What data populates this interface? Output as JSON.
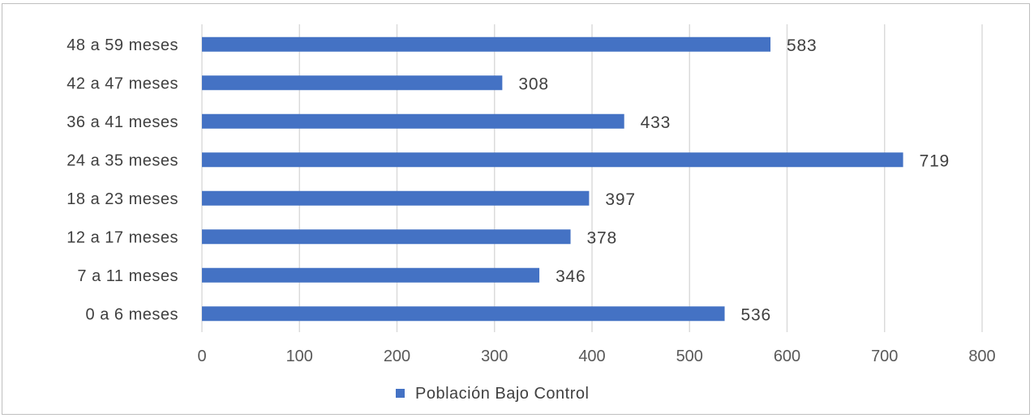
{
  "chart_data": {
    "type": "bar",
    "orientation": "horizontal",
    "categories": [
      "0 a 6 meses",
      "7 a 11 meses",
      "12 a 17 meses",
      "18 a 23 meses",
      "24 a 35 meses",
      "36 a 41 meses",
      "42 a 47 meses",
      "48 a 59 meses"
    ],
    "series": [
      {
        "name": "Población Bajo Control",
        "values": [
          536,
          346,
          378,
          397,
          719,
          433,
          308,
          583
        ],
        "color": "#4472c4"
      }
    ],
    "xlim": [
      0,
      800
    ],
    "xticks": [
      0,
      100,
      200,
      300,
      400,
      500,
      600,
      700,
      800
    ],
    "grid": true,
    "legend_position": "bottom",
    "data_labels": true
  }
}
